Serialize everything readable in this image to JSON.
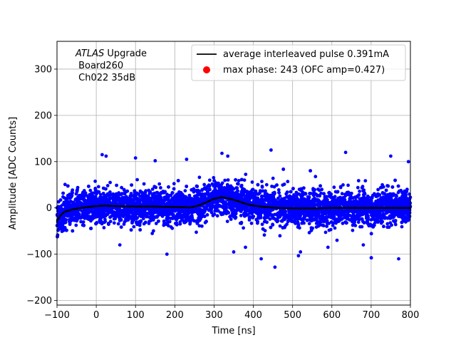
{
  "chart_data": {
    "type": "scatter",
    "xlabel": "Time [ns]",
    "ylabel": "Amplitude [ADC Counts]",
    "xlim": [
      -100,
      800
    ],
    "ylim": [
      -210,
      360
    ],
    "xticks": [
      -100,
      0,
      100,
      200,
      300,
      400,
      500,
      600,
      700,
      800
    ],
    "yticks": [
      -200,
      -100,
      0,
      100,
      200,
      300
    ],
    "grid": true,
    "annotation": {
      "line1_italic": "ATLAS",
      "line1_rest": " Upgrade",
      "line2": " Board260",
      "line3": " Ch022 35dB"
    },
    "legend": {
      "placement": "top-right",
      "entries": [
        {
          "label": "average interleaved pulse 0.391mA",
          "marker": "line",
          "color": "#000000"
        },
        {
          "label": "max phase: 243 (OFC amp=0.427)",
          "marker": "dot",
          "color": "#ff0000"
        }
      ]
    },
    "series": [
      {
        "kind": "scatter",
        "color": "#0000ff",
        "noise_sigma": 18,
        "x_range": [
          -100,
          800
        ]
      },
      {
        "kind": "line",
        "color": "#000000",
        "x": [
          -100,
          -90,
          -80,
          -60,
          -40,
          -20,
          0,
          20,
          50,
          100,
          150,
          200,
          240,
          260,
          280,
          300,
          320,
          340,
          360,
          380,
          400,
          430,
          460,
          500,
          550,
          600,
          700,
          800
        ],
        "y": [
          -28,
          -15,
          -8,
          -3,
          0,
          2,
          4,
          5,
          4,
          3,
          3,
          2,
          1,
          5,
          12,
          20,
          23,
          20,
          15,
          9,
          5,
          2,
          0,
          -1,
          -1,
          0,
          0,
          0
        ]
      }
    ],
    "outliers": {
      "x": [
        15,
        25,
        100,
        150,
        230,
        320,
        335,
        445,
        635,
        750,
        795,
        60,
        180,
        350,
        380,
        420,
        455,
        520,
        590,
        680,
        770
      ],
      "y": [
        115,
        112,
        108,
        102,
        105,
        118,
        112,
        125,
        120,
        112,
        100,
        -80,
        -100,
        -95,
        -85,
        -110,
        -128,
        -95,
        -85,
        -80,
        -110
      ]
    }
  }
}
